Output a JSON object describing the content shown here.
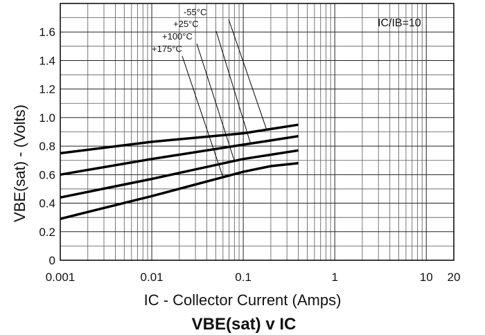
{
  "chart_data": {
    "type": "line",
    "title": "VBE(sat) v IC",
    "xlabel": "IC - Collector Current (Amps)",
    "ylabel": "VBE(sat) - (Volts)",
    "xscale": "log",
    "xlim": [
      0.001,
      20
    ],
    "ylim": [
      0,
      1.8
    ],
    "grid": true,
    "annotation": "IC/IB=10",
    "x_ticks": [
      "0.001",
      "0.01",
      "0.1",
      "1",
      "10",
      "20"
    ],
    "y_ticks": [
      "0",
      "0.2",
      "0.4",
      "0.6",
      "0.8",
      "1.0",
      "1.2",
      "1.4",
      "1.6"
    ],
    "series": [
      {
        "name": "-55°C",
        "x": [
          0.001,
          0.01,
          0.1,
          0.2,
          0.4
        ],
        "y": [
          0.75,
          0.83,
          0.89,
          0.92,
          0.95
        ]
      },
      {
        "name": "+25°C",
        "x": [
          0.001,
          0.01,
          0.1,
          0.2,
          0.4
        ],
        "y": [
          0.6,
          0.71,
          0.81,
          0.84,
          0.87
        ]
      },
      {
        "name": "+100°C",
        "x": [
          0.001,
          0.01,
          0.1,
          0.2,
          0.4
        ],
        "y": [
          0.44,
          0.57,
          0.71,
          0.74,
          0.77
        ]
      },
      {
        "name": "+175°C",
        "x": [
          0.001,
          0.01,
          0.1,
          0.2,
          0.4
        ],
        "y": [
          0.29,
          0.45,
          0.62,
          0.66,
          0.68
        ]
      }
    ]
  }
}
